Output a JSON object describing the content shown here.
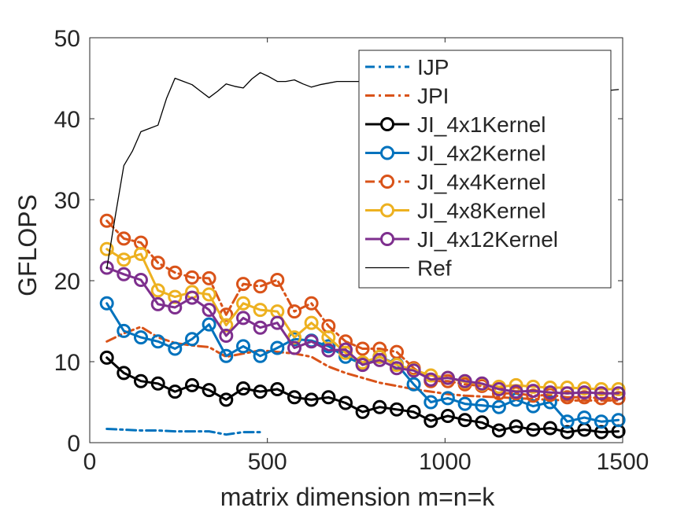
{
  "chart_data": {
    "type": "line",
    "title": "",
    "xlabel": "matrix dimension m=n=k",
    "ylabel": "GFLOPS",
    "xlim": [
      0,
      1500
    ],
    "ylim": [
      0,
      50
    ],
    "xticks": [
      0,
      500,
      1000,
      1500
    ],
    "yticks": [
      0,
      10,
      20,
      30,
      40,
      50
    ],
    "grid": false,
    "legend_position": "top-right",
    "series": [
      {
        "name": "IJP",
        "color": "#0072BD",
        "style": "dashdot",
        "marker": "none",
        "width": 3,
        "x": [
          48,
          96,
          144,
          192,
          240,
          288,
          336,
          384,
          432,
          480
        ],
        "y": [
          1.7,
          1.6,
          1.5,
          1.5,
          1.4,
          1.4,
          1.4,
          1.0,
          1.3,
          1.3
        ]
      },
      {
        "name": "JPI",
        "color": "#D95319",
        "style": "dashdot",
        "marker": "none",
        "width": 3,
        "x": [
          48,
          96,
          144,
          192,
          240,
          288,
          336,
          384,
          432,
          480,
          528,
          576,
          624,
          672,
          720,
          768,
          816,
          864,
          912,
          960,
          1008,
          1056,
          1104,
          1152,
          1200,
          1248,
          1296,
          1344,
          1392,
          1440,
          1488
        ],
        "y": [
          12.5,
          13.5,
          14.3,
          13.0,
          12.3,
          12.0,
          11.8,
          10.6,
          11.0,
          11.4,
          11.2,
          11.0,
          10.6,
          9.4,
          8.6,
          8.0,
          7.4,
          7.0,
          6.6,
          6.3,
          6.0,
          5.8,
          5.7,
          5.6,
          5.5,
          5.4,
          5.3,
          5.2,
          5.2,
          5.2,
          5.2
        ]
      },
      {
        "name": "JI_4x1Kernel",
        "color": "#000000",
        "style": "solid",
        "marker": "circle",
        "width": 3,
        "x": [
          48,
          96,
          144,
          192,
          240,
          288,
          336,
          384,
          432,
          480,
          528,
          576,
          624,
          672,
          720,
          768,
          816,
          864,
          912,
          960,
          1008,
          1056,
          1104,
          1152,
          1200,
          1248,
          1296,
          1344,
          1392,
          1440,
          1488
        ],
        "y": [
          10.5,
          8.6,
          7.6,
          7.3,
          6.3,
          7.1,
          6.5,
          5.3,
          6.7,
          6.3,
          6.6,
          5.6,
          5.3,
          5.6,
          4.9,
          3.8,
          4.4,
          4.1,
          3.8,
          2.7,
          3.3,
          2.8,
          2.5,
          1.5,
          2.0,
          1.6,
          1.8,
          1.3,
          1.6,
          1.3,
          1.4
        ]
      },
      {
        "name": "JI_4x2Kernel",
        "color": "#0072BD",
        "style": "solid",
        "marker": "circle",
        "width": 3,
        "x": [
          48,
          96,
          144,
          192,
          240,
          288,
          336,
          384,
          432,
          480,
          528,
          576,
          624,
          672,
          720,
          768,
          816,
          864,
          912,
          960,
          1008,
          1056,
          1104,
          1152,
          1200,
          1248,
          1296,
          1344,
          1392,
          1440,
          1488
        ],
        "y": [
          17.2,
          13.8,
          13.0,
          12.5,
          11.6,
          12.8,
          14.6,
          10.7,
          11.9,
          10.7,
          11.7,
          12.8,
          12.6,
          11.9,
          10.6,
          9.7,
          10.6,
          9.7,
          7.2,
          5.0,
          5.5,
          4.8,
          4.6,
          4.4,
          5.3,
          4.5,
          5.0,
          2.6,
          3.1,
          2.6,
          2.8
        ]
      },
      {
        "name": "JI_4x4Kernel",
        "color": "#D95319",
        "style": "dashdot",
        "marker": "circle",
        "width": 3,
        "x": [
          48,
          96,
          144,
          192,
          240,
          288,
          336,
          384,
          432,
          480,
          528,
          576,
          624,
          672,
          720,
          768,
          816,
          864,
          912,
          960,
          1008,
          1056,
          1104,
          1152,
          1200,
          1248,
          1296,
          1344,
          1392,
          1440,
          1488
        ],
        "y": [
          27.4,
          25.2,
          24.7,
          22.2,
          21.0,
          20.4,
          20.3,
          15.8,
          19.6,
          19.3,
          20.1,
          16.2,
          17.2,
          14.4,
          12.5,
          11.6,
          11.6,
          11.2,
          9.2,
          7.6,
          7.6,
          7.2,
          7.0,
          6.1,
          6.1,
          5.8,
          5.9,
          5.6,
          5.6,
          5.5,
          5.5
        ]
      },
      {
        "name": "JI_4x8Kernel",
        "color": "#EDB120",
        "style": "solid",
        "marker": "circle",
        "width": 3,
        "x": [
          48,
          96,
          144,
          192,
          240,
          288,
          336,
          384,
          432,
          480,
          528,
          576,
          624,
          672,
          720,
          768,
          816,
          864,
          912,
          960,
          1008,
          1056,
          1104,
          1152,
          1200,
          1248,
          1296,
          1344,
          1392,
          1440,
          1488
        ],
        "y": [
          23.9,
          22.6,
          23.3,
          18.8,
          18.0,
          18.6,
          18.3,
          14.5,
          17.2,
          16.4,
          16.2,
          13.0,
          14.8,
          13.0,
          11.1,
          9.9,
          10.6,
          9.6,
          9.0,
          8.3,
          8.0,
          7.5,
          7.2,
          6.9,
          7.1,
          6.9,
          6.8,
          6.8,
          6.7,
          6.6,
          6.6
        ]
      },
      {
        "name": "JI_4x12Kernel",
        "color": "#7E2F8E",
        "style": "solid",
        "marker": "circle",
        "width": 3,
        "x": [
          48,
          96,
          144,
          192,
          240,
          288,
          336,
          384,
          432,
          480,
          528,
          576,
          624,
          672,
          720,
          768,
          816,
          864,
          912,
          960,
          1008,
          1056,
          1104,
          1152,
          1200,
          1248,
          1296,
          1344,
          1392,
          1440,
          1488
        ],
        "y": [
          21.6,
          20.8,
          20.1,
          17.1,
          16.7,
          17.9,
          16.4,
          13.2,
          15.4,
          14.2,
          14.8,
          11.7,
          12.5,
          11.4,
          11.5,
          9.6,
          10.2,
          9.2,
          8.9,
          7.8,
          8.0,
          7.6,
          7.3,
          6.6,
          6.3,
          6.4,
          6.2,
          6.1,
          6.2,
          6.1,
          6.1
        ]
      },
      {
        "name": "Ref",
        "color": "#000000",
        "style": "solid",
        "marker": "none",
        "width": 1.3,
        "x": [
          48,
          72,
          96,
          120,
          144,
          168,
          192,
          216,
          240,
          264,
          288,
          312,
          336,
          360,
          384,
          408,
          432,
          456,
          480,
          504,
          528,
          552,
          576,
          600,
          624,
          648,
          672,
          696,
          720,
          744,
          768,
          792,
          816,
          840,
          864,
          888,
          912,
          936,
          960,
          984,
          1008,
          1032,
          1056,
          1080,
          1104,
          1128,
          1152,
          1176,
          1200,
          1224,
          1248,
          1272,
          1296,
          1320,
          1344,
          1368,
          1392,
          1416,
          1440,
          1464,
          1488
        ],
        "y": [
          21.5,
          28.0,
          34.2,
          36.0,
          38.4,
          38.8,
          39.2,
          42.5,
          45.0,
          44.6,
          44.2,
          43.4,
          42.6,
          43.4,
          44.3,
          44.0,
          43.8,
          44.9,
          45.7,
          45.2,
          44.6,
          44.6,
          44.8,
          44.3,
          43.9,
          44.2,
          44.4,
          44.6,
          44.6,
          44.6,
          44.6,
          44.6,
          44.6,
          44.6,
          44.6,
          44.6,
          44.6,
          44.6,
          44.6,
          44.6,
          44.6,
          44.6,
          44.6,
          44.6,
          44.6,
          44.6,
          44.6,
          44.6,
          44.6,
          44.6,
          44.6,
          44.6,
          44.6,
          44.6,
          44.6,
          44.6,
          44.6,
          44.4,
          43.9,
          43.5,
          43.6
        ]
      }
    ]
  }
}
